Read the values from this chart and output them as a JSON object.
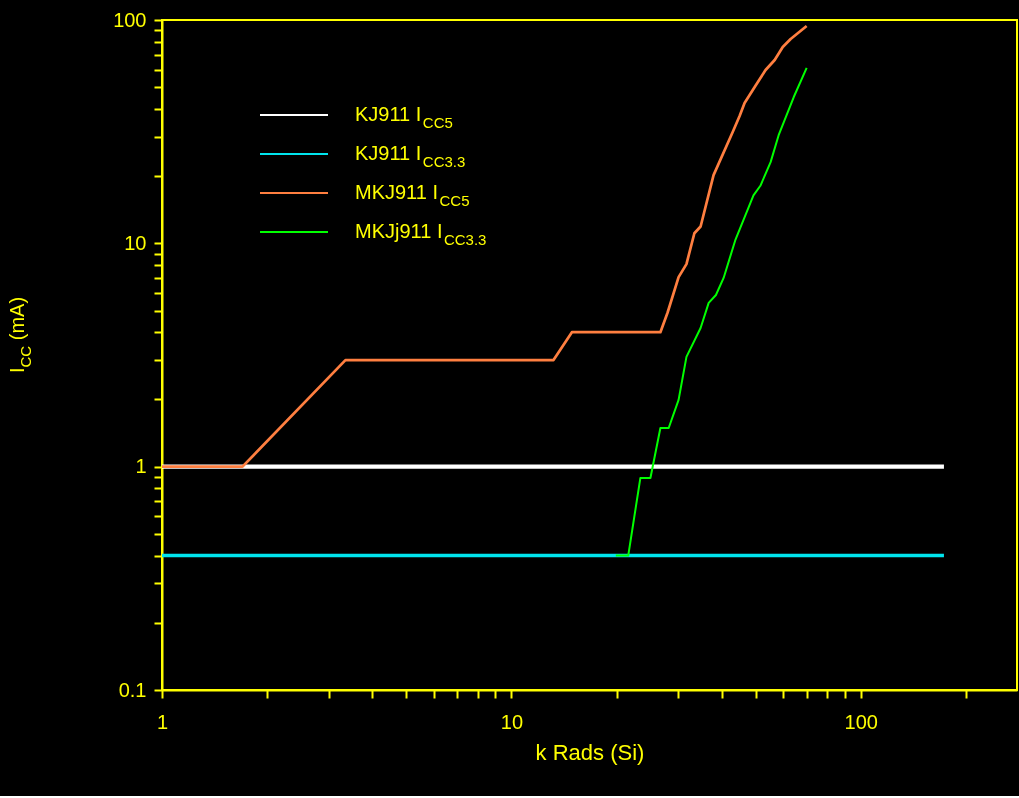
{
  "chart_data": {
    "type": "line",
    "xlabel": "k Rads (Si)",
    "ylabel": "I$_{CC}$ (mA)",
    "log": "xy",
    "grid": false,
    "legend": "top left",
    "xlim": [
      1,
      280
    ],
    "ylim": [
      0.1,
      100
    ],
    "xticks": [
      1,
      {
        "value": 2,
        "label": null
      },
      {
        "value": 3,
        "label": null
      },
      {
        "value": 4,
        "label": null
      },
      {
        "value": 5,
        "label": null
      },
      {
        "value": 6,
        "label": null
      },
      {
        "value": 7,
        "label": null
      },
      {
        "value": 8,
        "label": null
      },
      {
        "value": 9,
        "label": null
      },
      10,
      {
        "value": 20,
        "label": null
      },
      {
        "value": 30,
        "label": null
      },
      {
        "value": 40,
        "label": null
      },
      {
        "value": 50,
        "label": null
      },
      {
        "value": 60,
        "label": null
      },
      {
        "value": 70,
        "label": null
      },
      {
        "value": 80,
        "label": null
      },
      {
        "value": 90,
        "label": null
      },
      100,
      {
        "value": 200,
        "label": null
      }
    ],
    "yticks": [
      0.1,
      {
        "value": 0.2,
        "label": null
      },
      {
        "value": 0.3,
        "label": null
      },
      {
        "value": 0.4,
        "label": null
      },
      {
        "value": 0.5,
        "label": null
      },
      {
        "value": 0.6,
        "label": null
      },
      {
        "value": 0.7,
        "label": null
      },
      {
        "value": 0.8,
        "label": null
      },
      {
        "value": 0.9,
        "label": null
      },
      1,
      {
        "value": 2,
        "label": null
      },
      {
        "value": 3,
        "label": null
      },
      {
        "value": 4,
        "label": null
      },
      {
        "value": 5,
        "label": null
      },
      {
        "value": 6,
        "label": null
      },
      {
        "value": 7,
        "label": null
      },
      {
        "value": 8,
        "label": null
      },
      {
        "value": 9,
        "label": null
      },
      10,
      {
        "value": 20,
        "label": null
      },
      {
        "value": 30,
        "label": null
      },
      {
        "value": 40,
        "label": null
      },
      {
        "value": 50,
        "label": null
      },
      {
        "value": 60,
        "label": null
      },
      {
        "value": 70,
        "label": null
      },
      {
        "value": 80,
        "label": null
      },
      {
        "value": 90,
        "label": null
      },
      100
    ],
    "series": [
      {
        "name": "KJ911 I$_{CC5}$",
        "color": "#ffffff",
        "x": [
          1,
          173
        ],
        "values": [
          1,
          1
        ]
      },
      {
        "name": "KJ911 I$_{CC3.3}$",
        "color": "#00e5ee",
        "x": [
          1,
          173
        ],
        "values": [
          0.4,
          0.4
        ]
      },
      {
        "name": "MKJ911 I$_{CC5}$",
        "color": "#ff7f40",
        "x": [
          1,
          1.7,
          3.35,
          13.2,
          14.9,
          26.7,
          28.0,
          30.1,
          31.7,
          33.4,
          34.8,
          37.9,
          43.0,
          45.0,
          46.5,
          49.7,
          53.4,
          56.7,
          59.8,
          63.0,
          70.0
        ],
        "values": [
          1,
          1,
          3,
          3,
          4,
          4,
          4.9,
          7.06,
          8.07,
          11.1,
          11.9,
          20.2,
          31.5,
          37.2,
          42.5,
          50.1,
          59.7,
          66.2,
          75.7,
          82.2,
          94
        ]
      },
      {
        "name": "MKJj911 I$_{CC3.3}$",
        "color": "#00ff00",
        "x": [
          19.9,
          21.6,
          23.4,
          25.0,
          26.7,
          28.2,
          30.1,
          31.7,
          34.8,
          36.7,
          38.5,
          40.5,
          43.8,
          49.3,
          51.6,
          55.2,
          58.2,
          64.3,
          70.0
        ],
        "values": [
          0.4,
          0.4,
          0.89,
          0.89,
          1.49,
          1.49,
          1.99,
          3.1,
          4.18,
          5.41,
          5.87,
          7.0,
          10.4,
          16.4,
          18.1,
          23.1,
          30.5,
          45.2,
          61
        ]
      }
    ]
  }
}
